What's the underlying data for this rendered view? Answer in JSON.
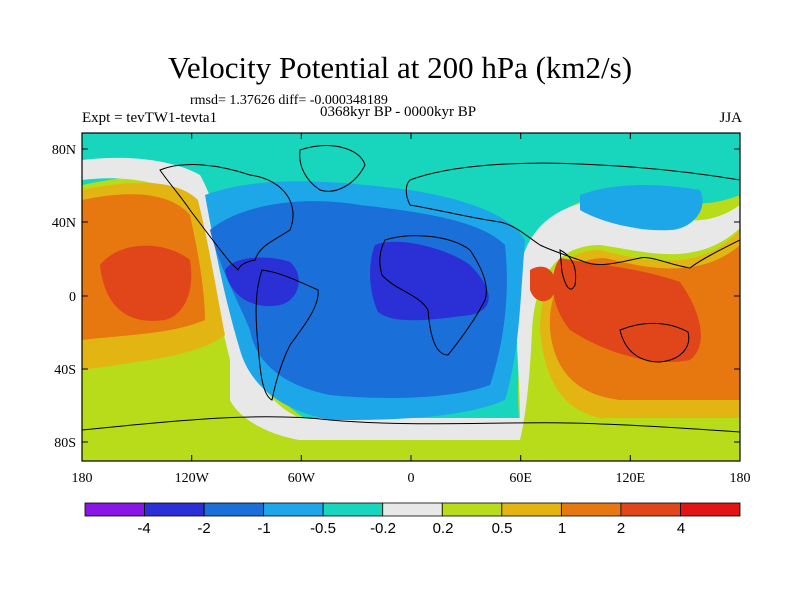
{
  "header": {
    "title": "Velocity Potential at 200 hPa (km2/s)",
    "stats": "rmsd= 1.37626 diff= -0.000348189",
    "experiment": "Expt = tevTW1-tevta1",
    "period": "0368kyr BP - 0000kyr BP",
    "season": "JJA"
  },
  "axes": {
    "lat_labels": [
      "80N",
      "40N",
      "0",
      "40S",
      "80S"
    ],
    "lon_labels": [
      "180",
      "120W",
      "60W",
      "0",
      "60E",
      "120E",
      "180"
    ]
  },
  "colorbar": {
    "colors": [
      "#8a16e6",
      "#2a2fd6",
      "#1a6fd8",
      "#1da6e8",
      "#18d6bd",
      "#e8e8e8",
      "#b8dc1a",
      "#e3b512",
      "#e6780f",
      "#e0461a",
      "#e21414"
    ],
    "labels": [
      "-4",
      "-2",
      "-1",
      "-0.5",
      "-0.2",
      "0.2",
      "0.5",
      "1",
      "2",
      "4"
    ]
  },
  "map": {
    "colors": {
      "teal": "#18d6bd",
      "light_blue": "#1da6e8",
      "mid_blue": "#1a6fd8",
      "deep_blue": "#2a2fd6",
      "white": "#e8e8e8",
      "yellow_green": "#b8dc1a",
      "gold": "#e3b512",
      "orange": "#e6780f",
      "red_orange": "#e0461a",
      "coast": "#000000"
    }
  }
}
